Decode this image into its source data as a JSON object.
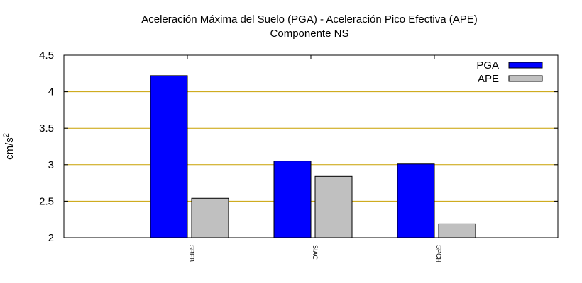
{
  "chart_data": {
    "type": "bar",
    "title": "Aceleración Máxima del Suelo (PGA) -  Aceleración Pico Efectiva (APE)",
    "subtitle": "Componente NS",
    "xlabel": "",
    "ylabel_base": "cm/s",
    "ylabel_sup": "2",
    "categories": [
      "SBEB",
      "SIAC",
      "SPCH"
    ],
    "series": [
      {
        "name": "PGA",
        "values": [
          4.22,
          3.05,
          3.01
        ],
        "color": "#0000ff"
      },
      {
        "name": "APE",
        "values": [
          2.54,
          2.84,
          2.19
        ],
        "color": "#c0c0c0"
      }
    ],
    "ylim": [
      2,
      4.5
    ],
    "yticks": [
      2,
      2.5,
      3,
      3.5,
      4,
      4.5
    ],
    "ytick_labels": [
      "2",
      "2.5",
      "3",
      "3.5",
      "4",
      "4.5"
    ],
    "grid": true,
    "grid_color": "#c8a000",
    "legend_position": "top-right"
  }
}
